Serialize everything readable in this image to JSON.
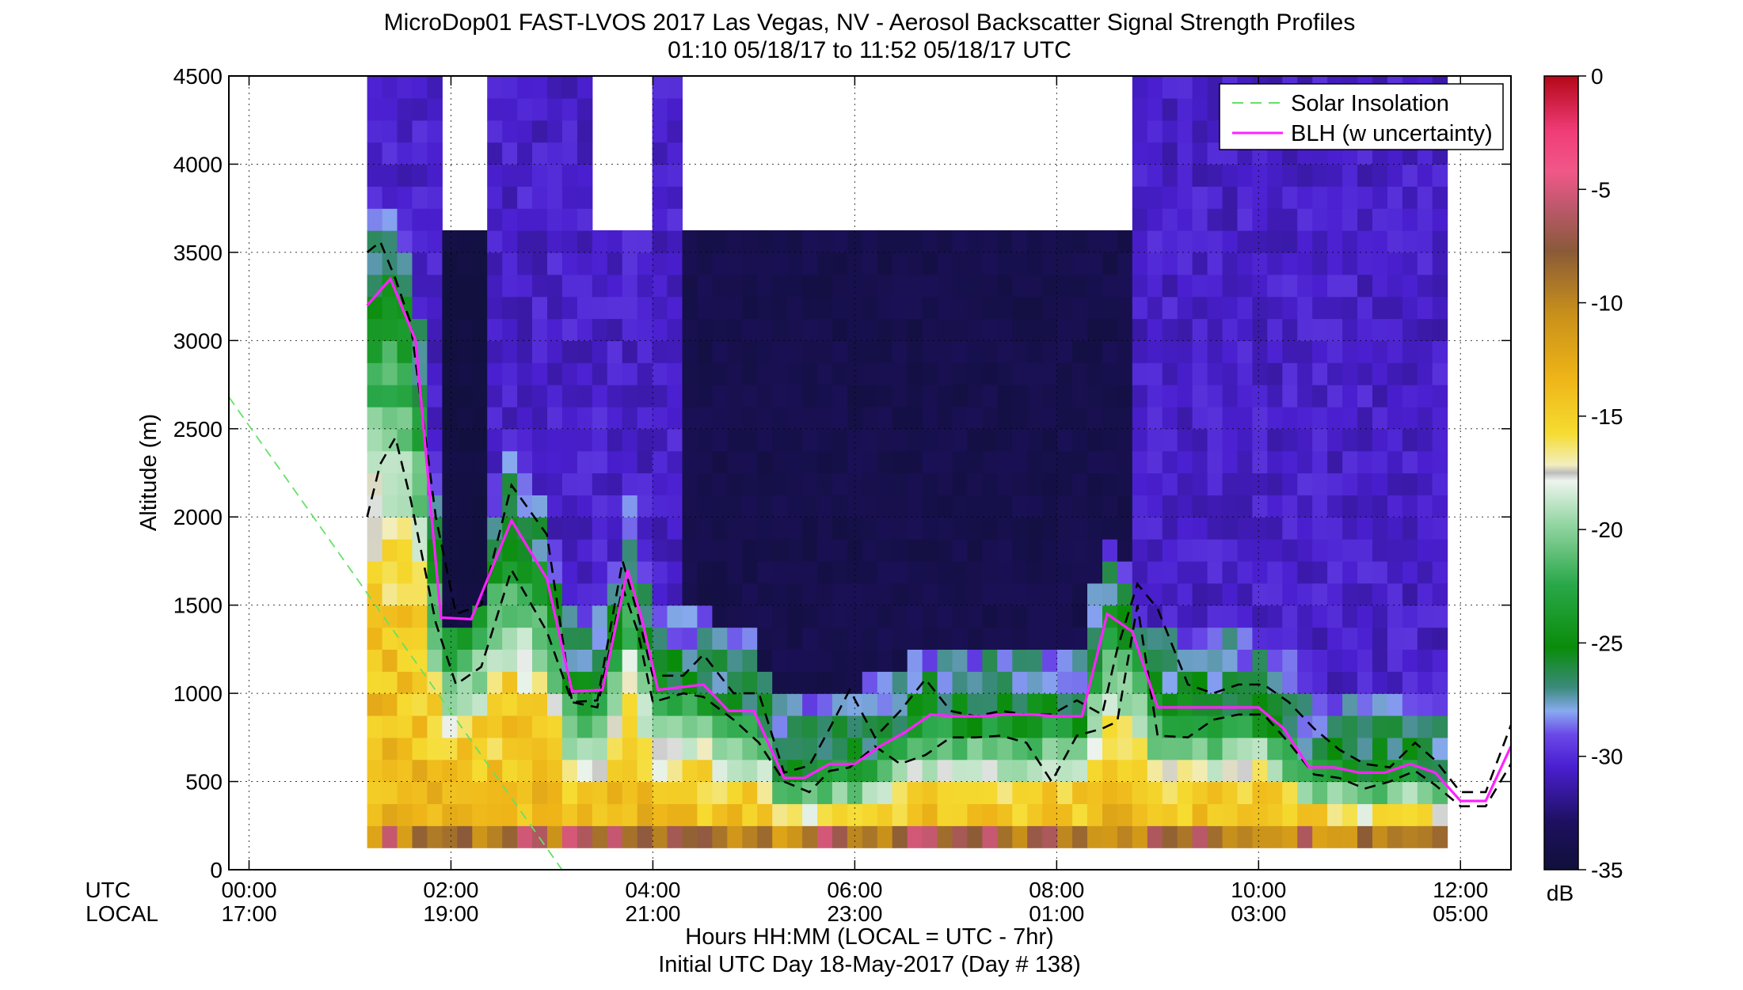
{
  "chart_data": {
    "type": "heatmap",
    "title": "MicroDop01 FAST-LVOS 2017 Las Vegas, NV - Aerosol Backscatter Signal Strength Profiles",
    "subtitle": "01:10 05/18/17 to 11:52 05/18/17  UTC",
    "ylabel": "Altitude (m)",
    "xlabel_lines": [
      "Hours HH:MM  (LOCAL = UTC - 7hr)",
      "Initial UTC Day 18-May-2017 (Day # 138)"
    ],
    "x_row_labels": [
      "UTC",
      "LOCAL"
    ],
    "x_ticks_utc": [
      "00:00",
      "02:00",
      "04:00",
      "06:00",
      "08:00",
      "10:00",
      "12:00"
    ],
    "x_ticks_local": [
      "17:00",
      "19:00",
      "21:00",
      "23:00",
      "01:00",
      "03:00",
      "05:00"
    ],
    "x_range_hours": [
      -0.2,
      12.5
    ],
    "y_ticks": [
      "0",
      "500",
      "1000",
      "1500",
      "2000",
      "2500",
      "3000",
      "3500",
      "4000",
      "4500"
    ],
    "y_range": [
      0,
      4500
    ],
    "grid": true,
    "colorbar": {
      "ticks": [
        "0",
        "-5",
        "-10",
        "-15",
        "-20",
        "-25",
        "-30",
        "-35"
      ],
      "range": [
        -35,
        0
      ],
      "unit": "dB"
    },
    "heatmap_extent": {
      "x_start_hours": 1.17,
      "x_end_hours": 11.87,
      "y_bottom_m": 125
    },
    "legend": {
      "position": "top-right",
      "entries": [
        {
          "label": "Solar Insolation",
          "color": "#66e066",
          "style": "dashed"
        },
        {
          "label": "BLH (w uncertainty)",
          "color": "#ff22ff",
          "style": "solid"
        }
      ]
    },
    "blh": {
      "x": [
        1.17,
        1.4,
        1.65,
        1.9,
        2.2,
        2.6,
        2.95,
        3.2,
        3.5,
        3.75,
        3.9,
        4.05,
        4.5,
        4.75,
        5.0,
        5.3,
        5.5,
        5.75,
        6.0,
        6.25,
        6.5,
        6.75,
        7.0,
        7.25,
        7.5,
        7.75,
        8.0,
        8.25,
        8.5,
        8.75,
        9.0,
        9.25,
        9.5,
        9.75,
        10.0,
        10.25,
        10.5,
        10.75,
        11.0,
        11.25,
        11.5,
        11.75,
        12.0,
        12.25,
        12.5
      ],
      "y": [
        3200,
        3350,
        3000,
        1430,
        1420,
        1980,
        1650,
        1010,
        1020,
        1700,
        1400,
        1020,
        1050,
        900,
        900,
        520,
        520,
        600,
        600,
        700,
        780,
        880,
        870,
        870,
        880,
        880,
        870,
        870,
        1450,
        1350,
        920,
        920,
        920,
        920,
        920,
        800,
        580,
        580,
        550,
        550,
        600,
        550,
        390,
        390,
        700
      ]
    },
    "blh_upper": {
      "x": [
        1.17,
        1.3,
        1.45,
        1.6,
        1.85,
        2.05,
        2.3,
        2.6,
        2.95,
        3.2,
        3.45,
        3.7,
        3.85,
        4.0,
        4.3,
        4.5,
        4.8,
        5.05,
        5.3,
        5.55,
        5.75,
        5.95,
        6.2,
        6.45,
        6.7,
        6.95,
        7.2,
        7.45,
        7.7,
        7.95,
        8.2,
        8.45,
        8.6,
        8.8,
        9.0,
        9.3,
        9.55,
        9.8,
        10.05,
        10.3,
        10.55,
        10.8,
        11.05,
        11.3,
        11.55,
        11.75,
        12.0,
        12.25,
        12.5
      ],
      "y": [
        3500,
        3560,
        3350,
        3100,
        2000,
        1450,
        1500,
        2180,
        1900,
        950,
        960,
        1750,
        1450,
        1100,
        1100,
        1220,
        1000,
        1000,
        550,
        590,
        800,
        1020,
        750,
        900,
        1080,
        900,
        870,
        900,
        880,
        880,
        960,
        880,
        1250,
        1620,
        1480,
        1050,
        1000,
        1050,
        1050,
        950,
        800,
        680,
        600,
        580,
        720,
        620,
        440,
        440,
        820
      ]
    },
    "blh_lower": {
      "x": [
        1.17,
        1.3,
        1.45,
        1.6,
        1.85,
        2.05,
        2.3,
        2.6,
        2.95,
        3.2,
        3.45,
        3.7,
        3.85,
        4.0,
        4.3,
        4.5,
        4.8,
        5.05,
        5.3,
        5.55,
        5.75,
        5.95,
        6.2,
        6.45,
        6.7,
        6.95,
        7.2,
        7.45,
        7.7,
        7.95,
        8.2,
        8.45,
        8.6,
        8.8,
        9.0,
        9.3,
        9.55,
        9.8,
        10.05,
        10.3,
        10.55,
        10.8,
        11.05,
        11.3,
        11.55,
        11.75,
        12.0,
        12.25,
        12.5
      ],
      "y": [
        2000,
        2300,
        2450,
        2100,
        1400,
        1050,
        1150,
        1700,
        1350,
        950,
        920,
        1600,
        1350,
        950,
        1000,
        980,
        850,
        720,
        500,
        440,
        560,
        580,
        700,
        600,
        650,
        750,
        750,
        760,
        720,
        500,
        760,
        800,
        840,
        1500,
        760,
        750,
        850,
        880,
        880,
        720,
        540,
        520,
        460,
        500,
        560,
        480,
        360,
        360,
        600
      ]
    },
    "solar_insolation": {
      "x": [
        -0.2,
        3.1
      ],
      "y": [
        2680,
        0
      ]
    },
    "colors": {
      "blh": "#ff22ff",
      "uncertainty": "#000000",
      "solar": "#66e066",
      "no_data": "#ffffff"
    }
  }
}
